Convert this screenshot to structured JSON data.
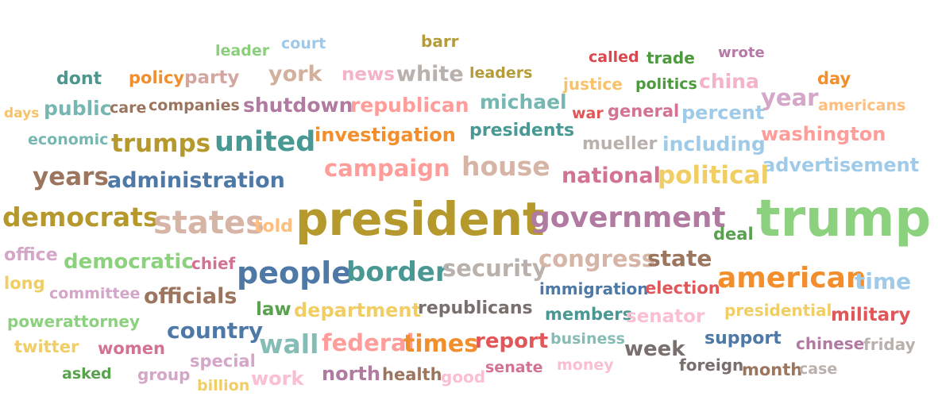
{
  "words": [
    {
      "text": "barr",
      "color": "#b59c3a"
    },
    {
      "text": "court",
      "color": "#9fc9e8"
    },
    {
      "text": "leader",
      "color": "#8bcf7c"
    },
    {
      "text": "called",
      "color": "#d9484e"
    },
    {
      "text": "trade",
      "color": "#4d9a3e"
    },
    {
      "text": "wrote",
      "color": "#b57ba6"
    },
    {
      "text": "dont",
      "color": "#4f968f"
    },
    {
      "text": "policy",
      "color": "#f28e2b"
    },
    {
      "text": "party",
      "color": "#d4a6a0"
    },
    {
      "text": "york",
      "color": "#d2b09b"
    },
    {
      "text": "news",
      "color": "#f4b3c6"
    },
    {
      "text": "white",
      "color": "#bab0ac"
    },
    {
      "text": "leaders",
      "color": "#b59c3a"
    },
    {
      "text": "justice",
      "color": "#f7c26b"
    },
    {
      "text": "politics",
      "color": "#4d9a3e"
    },
    {
      "text": "china",
      "color": "#f4b3c6"
    },
    {
      "text": "day",
      "color": "#f28e2b"
    },
    {
      "text": "days",
      "color": "#f7c26b"
    },
    {
      "text": "public",
      "color": "#76b7b2"
    },
    {
      "text": "care",
      "color": "#9c755f"
    },
    {
      "text": "companies",
      "color": "#9c755f"
    },
    {
      "text": "shutdown",
      "color": "#b07aa1"
    },
    {
      "text": "republican",
      "color": "#ff9d9a"
    },
    {
      "text": "michael",
      "color": "#76b7b2"
    },
    {
      "text": "war",
      "color": "#e15759"
    },
    {
      "text": "general",
      "color": "#d37295"
    },
    {
      "text": "percent",
      "color": "#a0cbe8"
    },
    {
      "text": "year",
      "color": "#d4a6c8"
    },
    {
      "text": "americans",
      "color": "#ffbe7d"
    },
    {
      "text": "economic",
      "color": "#76b7b2"
    },
    {
      "text": "trumps",
      "color": "#b6992d"
    },
    {
      "text": "united",
      "color": "#499894"
    },
    {
      "text": "investigation",
      "color": "#f28e2b"
    },
    {
      "text": "presidents",
      "color": "#499894"
    },
    {
      "text": "mueller",
      "color": "#bab0ac"
    },
    {
      "text": "including",
      "color": "#a0cbe8"
    },
    {
      "text": "washington",
      "color": "#ff9d9a"
    },
    {
      "text": "advertisement",
      "color": "#a0cbe8"
    },
    {
      "text": "years",
      "color": "#9c755f"
    },
    {
      "text": "administration",
      "color": "#4e79a7"
    },
    {
      "text": "campaign",
      "color": "#ff9d9a"
    },
    {
      "text": "house",
      "color": "#d7b5a6"
    },
    {
      "text": "national",
      "color": "#d37295"
    },
    {
      "text": "political",
      "color": "#f1ce63"
    },
    {
      "text": "democrats",
      "color": "#b6992d"
    },
    {
      "text": "states",
      "color": "#d7b5a6"
    },
    {
      "text": "told",
      "color": "#ffbe7d"
    },
    {
      "text": "president",
      "color": "#b6992d"
    },
    {
      "text": "government",
      "color": "#b07aa1"
    },
    {
      "text": "deal",
      "color": "#59a14f"
    },
    {
      "text": "trump",
      "color": "#8cd17d"
    },
    {
      "text": "office",
      "color": "#d4a6c8"
    },
    {
      "text": "democratic",
      "color": "#8cd17d"
    },
    {
      "text": "chief",
      "color": "#d37295"
    },
    {
      "text": "people",
      "color": "#4e79a7"
    },
    {
      "text": "border",
      "color": "#499894"
    },
    {
      "text": "security",
      "color": "#bab0ac"
    },
    {
      "text": "congress",
      "color": "#d7b5a6"
    },
    {
      "text": "state",
      "color": "#9c755f"
    },
    {
      "text": "long",
      "color": "#f1ce63"
    },
    {
      "text": "committee",
      "color": "#d4a6c8"
    },
    {
      "text": "officials",
      "color": "#9c755f"
    },
    {
      "text": "immigration",
      "color": "#4e79a7"
    },
    {
      "text": "election",
      "color": "#e15759"
    },
    {
      "text": "american",
      "color": "#f28e2b"
    },
    {
      "text": "time",
      "color": "#a0cbe8"
    },
    {
      "text": "law",
      "color": "#59a14f"
    },
    {
      "text": "department",
      "color": "#f1ce63"
    },
    {
      "text": "republicans",
      "color": "#79706e"
    },
    {
      "text": "members",
      "color": "#499894"
    },
    {
      "text": "presidential",
      "color": "#f1ce63"
    },
    {
      "text": "military",
      "color": "#e15759"
    },
    {
      "text": "powerattorney",
      "color": "#8cd17d"
    },
    {
      "text": "senator",
      "color": "#fabfd2"
    },
    {
      "text": "country",
      "color": "#4e79a7"
    },
    {
      "text": "twitter",
      "color": "#f1ce63"
    },
    {
      "text": "women",
      "color": "#d37295"
    },
    {
      "text": "wall",
      "color": "#86bcb6"
    },
    {
      "text": "federal",
      "color": "#ff9d9a"
    },
    {
      "text": "times",
      "color": "#f28e2b"
    },
    {
      "text": "report",
      "color": "#e15759"
    },
    {
      "text": "business",
      "color": "#86bcb6"
    },
    {
      "text": "week",
      "color": "#79706e"
    },
    {
      "text": "support",
      "color": "#4e79a7"
    },
    {
      "text": "chinese",
      "color": "#b07aa1"
    },
    {
      "text": "friday",
      "color": "#bab0ac"
    },
    {
      "text": "special",
      "color": "#d4a6c8"
    },
    {
      "text": "asked",
      "color": "#59a14f"
    },
    {
      "text": "group",
      "color": "#d4a6c8"
    },
    {
      "text": "north",
      "color": "#b07aa1"
    },
    {
      "text": "health",
      "color": "#9c755f"
    },
    {
      "text": "senate",
      "color": "#d37295"
    },
    {
      "text": "money",
      "color": "#fabfd2"
    },
    {
      "text": "foreign",
      "color": "#79706e"
    },
    {
      "text": "month",
      "color": "#9c755f"
    },
    {
      "text": "case",
      "color": "#bab0ac"
    },
    {
      "text": "billion",
      "color": "#f1ce63"
    },
    {
      "text": "work",
      "color": "#fabfd2"
    },
    {
      "text": "good",
      "color": "#fabfd2"
    }
  ]
}
